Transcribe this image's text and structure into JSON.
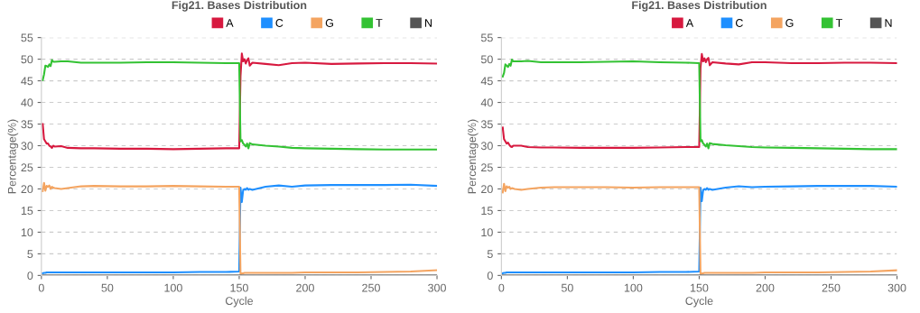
{
  "chart_data": [
    {
      "type": "line",
      "title": "Fig21. Bases Distribution",
      "xlabel": "Cycle",
      "ylabel": "Percentage(%)",
      "x": [
        1,
        2,
        3,
        4,
        5,
        6,
        7,
        8,
        9,
        10,
        15,
        20,
        30,
        40,
        60,
        80,
        100,
        120,
        140,
        150,
        151,
        152,
        153,
        154,
        155,
        156,
        157,
        158,
        160,
        170,
        180,
        190,
        200,
        220,
        240,
        260,
        280,
        300
      ],
      "series": [
        {
          "name": "A",
          "color": "#d7193f",
          "values": [
            35,
            31.5,
            31,
            30.5,
            30.5,
            30,
            29.8,
            29.5,
            30,
            29.8,
            29.9,
            29.5,
            29.4,
            29.4,
            29.3,
            29.3,
            29.2,
            29.3,
            29.4,
            29.4,
            46,
            51.3,
            49.5,
            50,
            49,
            49.8,
            50.2,
            48.5,
            49.2,
            48.9,
            48.6,
            49.1,
            49.2,
            48.9,
            49,
            49.1,
            49.1,
            49
          ]
        },
        {
          "name": "C",
          "color": "#1e8fff",
          "values": [
            0.5,
            0.6,
            0.6,
            0.7,
            0.7,
            0.7,
            0.7,
            0.7,
            0.7,
            0.7,
            0.7,
            0.7,
            0.7,
            0.7,
            0.7,
            0.7,
            0.7,
            0.8,
            0.8,
            0.9,
            20.3,
            17,
            19.7,
            20,
            19.8,
            20.2,
            19.8,
            20,
            19.8,
            20.5,
            20.8,
            20.5,
            20.8,
            20.9,
            20.9,
            20.9,
            21,
            20.7
          ]
        },
        {
          "name": "G",
          "color": "#f4a460",
          "values": [
            19.5,
            21.4,
            19.6,
            20.7,
            20.5,
            20.8,
            20,
            20.5,
            20.3,
            20.2,
            20,
            20.2,
            20.6,
            20.7,
            20.6,
            20.6,
            20.7,
            20.6,
            20.5,
            20.5,
            0.2,
            0.5,
            0.5,
            0.6,
            0.6,
            0.6,
            0.6,
            0.6,
            0.6,
            0.6,
            0.6,
            0.6,
            0.7,
            0.7,
            0.7,
            0.8,
            0.9,
            1.2
          ]
        },
        {
          "name": "T",
          "color": "#33c233",
          "values": [
            45.2,
            46.5,
            48.5,
            48.4,
            48.2,
            48.8,
            48.4,
            49.8,
            49.4,
            49.4,
            49.5,
            49.5,
            49.2,
            49.2,
            49.2,
            49.3,
            49.3,
            49.2,
            49.1,
            49.1,
            31,
            31.3,
            30.5,
            30.2,
            29.8,
            30.5,
            29.4,
            30.6,
            30.3,
            30,
            29.8,
            29.5,
            29.4,
            29.3,
            29.2,
            29.1,
            29.1,
            29.1
          ]
        },
        {
          "name": "N",
          "color": "#555555",
          "values": [
            0,
            0,
            0,
            0,
            0,
            0,
            0,
            0,
            0,
            0,
            0,
            0,
            0,
            0,
            0,
            0,
            0,
            0,
            0,
            0,
            0,
            0,
            0,
            0,
            0,
            0,
            0,
            0,
            0,
            0,
            0,
            0,
            0,
            0,
            0,
            0,
            0,
            0
          ]
        }
      ],
      "xlim": [
        0,
        300
      ],
      "xticks": [
        0,
        50,
        100,
        150,
        200,
        250,
        300
      ],
      "ylim": [
        0,
        55
      ],
      "yticks": [
        0,
        5,
        10,
        15,
        20,
        25,
        30,
        35,
        40,
        45,
        50,
        55
      ],
      "grid": "y",
      "legend": "top right",
      "marker": "none",
      "line_style": "solid"
    },
    {
      "type": "line",
      "title": "Fig21. Bases Distribution",
      "xlabel": "Cycle",
      "ylabel": "Percentage(%)",
      "x": [
        1,
        2,
        3,
        4,
        5,
        6,
        7,
        8,
        9,
        10,
        15,
        20,
        30,
        40,
        60,
        80,
        100,
        120,
        140,
        150,
        151,
        152,
        153,
        154,
        155,
        156,
        157,
        158,
        160,
        170,
        180,
        190,
        200,
        220,
        240,
        260,
        280,
        300
      ],
      "series": [
        {
          "name": "A",
          "color": "#d7193f",
          "values": [
            34.2,
            31.5,
            31,
            30.5,
            30.7,
            30.2,
            29.8,
            29.7,
            30,
            30,
            30,
            29.7,
            29.6,
            29.6,
            29.5,
            29.5,
            29.5,
            29.6,
            29.7,
            29.7,
            48,
            51.2,
            49.5,
            50.2,
            49.3,
            50,
            50.3,
            48.6,
            49.3,
            49,
            48.8,
            49.3,
            49.3,
            49.1,
            49.1,
            49.2,
            49.2,
            49.1
          ]
        },
        {
          "name": "C",
          "color": "#1e8fff",
          "values": [
            0.5,
            0.6,
            0.6,
            0.7,
            0.7,
            0.7,
            0.7,
            0.7,
            0.7,
            0.7,
            0.7,
            0.7,
            0.7,
            0.7,
            0.7,
            0.7,
            0.7,
            0.8,
            0.8,
            0.9,
            20.3,
            17.2,
            19.7,
            20,
            19.8,
            20.2,
            19.8,
            20,
            19.8,
            20.3,
            20.6,
            20.4,
            20.5,
            20.6,
            20.7,
            20.7,
            20.7,
            20.5
          ]
        },
        {
          "name": "G",
          "color": "#f4a460",
          "values": [
            19.2,
            21.2,
            19.5,
            20.6,
            20.3,
            20.5,
            20,
            20.2,
            20.1,
            20,
            19.8,
            20,
            20.3,
            20.4,
            20.4,
            20.4,
            20.3,
            20.4,
            20.4,
            20.4,
            0.2,
            0.5,
            0.5,
            0.6,
            0.6,
            0.6,
            0.6,
            0.6,
            0.6,
            0.6,
            0.6,
            0.6,
            0.7,
            0.7,
            0.7,
            0.8,
            0.9,
            1.2
          ]
        },
        {
          "name": "T",
          "color": "#33c233",
          "values": [
            46,
            46.8,
            48.8,
            48.5,
            48.2,
            48.9,
            48.5,
            49.9,
            49.5,
            49.5,
            49.5,
            49.6,
            49.3,
            49.3,
            49.3,
            49.4,
            49.5,
            49.3,
            49.2,
            49.1,
            31,
            31.3,
            30.5,
            30.2,
            29.8,
            30.5,
            29.4,
            30.6,
            30.4,
            30.1,
            29.9,
            29.7,
            29.6,
            29.5,
            29.4,
            29.3,
            29.2,
            29.2
          ]
        },
        {
          "name": "N",
          "color": "#555555",
          "values": [
            0,
            0,
            0,
            0,
            0,
            0,
            0,
            0,
            0,
            0,
            0,
            0,
            0,
            0,
            0,
            0,
            0,
            0,
            0,
            0,
            0,
            0,
            0,
            0,
            0,
            0,
            0,
            0,
            0,
            0,
            0,
            0,
            0,
            0,
            0,
            0,
            0,
            0
          ]
        }
      ],
      "xlim": [
        0,
        300
      ],
      "xticks": [
        0,
        50,
        100,
        150,
        200,
        250,
        300
      ],
      "ylim": [
        0,
        55
      ],
      "yticks": [
        0,
        5,
        10,
        15,
        20,
        25,
        30,
        35,
        40,
        45,
        50,
        55
      ],
      "grid": "y",
      "legend": "top right",
      "marker": "none",
      "line_style": "solid"
    }
  ]
}
